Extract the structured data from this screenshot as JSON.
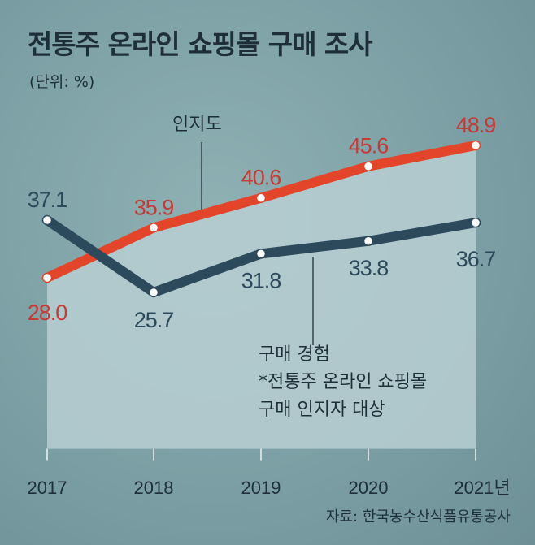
{
  "title": "전통주 온라인 쇼핑몰 구매 조사",
  "unit": "(단위: %)",
  "source": "자료: 한국농수산식품유통공사",
  "footnote_lines": [
    "*전통주 온라인 쇼핑몰",
    "구매 인지자 대상"
  ],
  "colors": {
    "awareness": "#e2452a",
    "awareness_label": "#c43a36",
    "purchase": "#2d4a5c",
    "fill": "#b8cfd2"
  },
  "chart_data": {
    "type": "line",
    "title": "전통주 온라인 쇼핑몰 구매 조사",
    "ylabel": "%",
    "categories": [
      "2017",
      "2018",
      "2019",
      "2020",
      "2021년"
    ],
    "ylim": [
      1,
      50
    ],
    "grid": false,
    "series": [
      {
        "name": "인지도",
        "values": [
          28.0,
          35.9,
          40.6,
          45.6,
          48.9
        ],
        "labels": [
          "28.0",
          "35.9",
          "40.6",
          "45.6",
          "48.9"
        ]
      },
      {
        "name": "구매 경험",
        "values": [
          37.1,
          25.7,
          31.8,
          33.8,
          36.7
        ],
        "labels": [
          "37.1",
          "25.7",
          "31.8",
          "33.8",
          "36.7"
        ]
      }
    ]
  }
}
